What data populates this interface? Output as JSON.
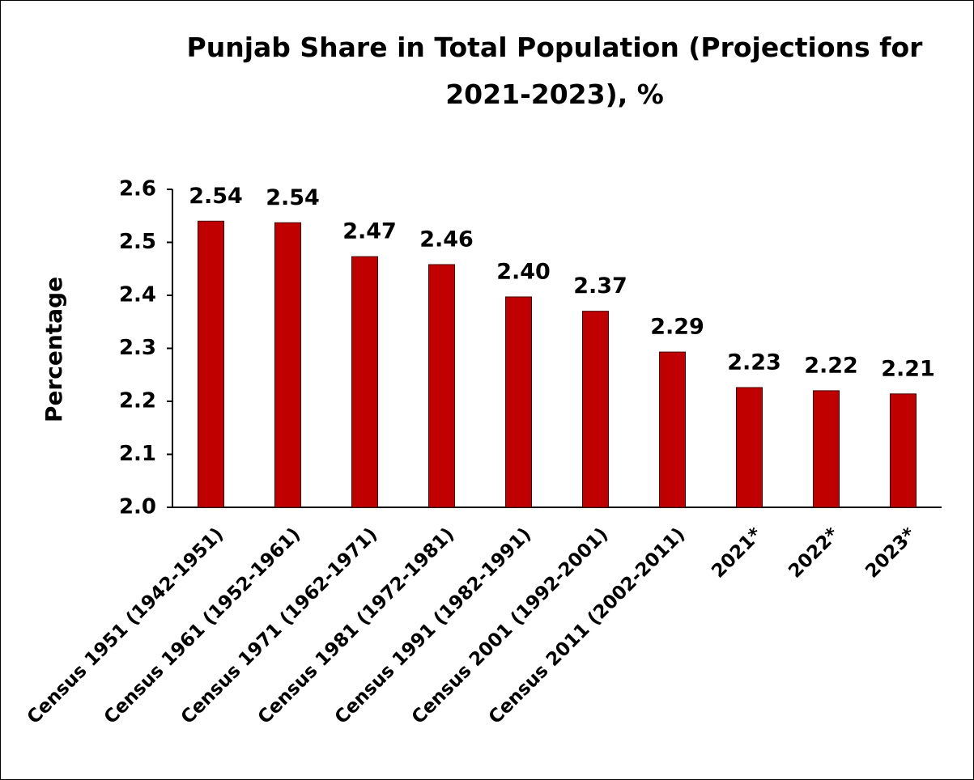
{
  "chart_data": {
    "type": "bar",
    "title": "Punjab Share in Total Population (Projections for 2021-2023), %",
    "y_label": "Percentage",
    "categories": [
      "Census 1951 (1942-1951)",
      "Census 1961 (1952-1961)",
      "Census 1971 (1962-1971)",
      "Census 1981 (1972-1981)",
      "Census 1991 (1982-1991)",
      "Census 2001 (1992-2001)",
      "Census 2011 (2002-2011)",
      "2021*",
      "2022*",
      "2023*"
    ],
    "values": [
      2.54,
      2.537,
      2.473,
      2.458,
      2.397,
      2.37,
      2.293,
      2.226,
      2.22,
      2.214
    ],
    "value_labels": [
      "2.54",
      "2.54",
      "2.47",
      "2.46",
      "2.40",
      "2.37",
      "2.29",
      "2.23",
      "2.22",
      "2.21"
    ],
    "color": "#c00000",
    "ylim": [
      2.0,
      2.6
    ],
    "yticks": [
      {
        "value": 2.0,
        "label": "2.0"
      },
      2.1,
      2.2,
      2.3,
      2.4,
      2.5,
      2.6
    ],
    "grid": false
  }
}
